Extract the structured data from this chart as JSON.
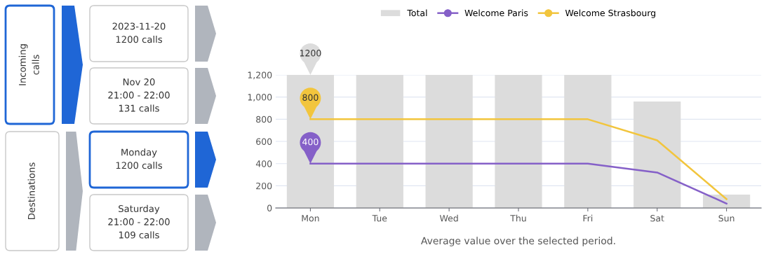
{
  "chart_data": [
    {
      "type": "other",
      "annotations": [
        "Incoming\ncalls",
        "2023-11-20\n1200 calls",
        "Nov 20\n21:00 - 22:00\n131 calls",
        "Destinations",
        "Monday\n1200 calls",
        "Saturday\n21:00 - 22:00\n109 calls"
      ]
    },
    {
      "type": "bar",
      "categories": [
        "Mon",
        "Tue",
        "Wed",
        "Thu",
        "Fri",
        "Sat",
        "Sun"
      ],
      "series": [
        {
          "name": "Total",
          "type": "bar",
          "color": "#dcdcdc",
          "values": [
            1200,
            1200,
            1200,
            1200,
            1200,
            960,
            120
          ]
        },
        {
          "name": "Welcome Paris",
          "type": "line",
          "color": "#8560c8",
          "values": [
            400,
            400,
            400,
            400,
            400,
            320,
            40
          ]
        },
        {
          "name": "Welcome Strasbourg",
          "type": "line",
          "color": "#f2c53d",
          "values": [
            800,
            800,
            800,
            800,
            800,
            610,
            80
          ]
        }
      ],
      "ylim": [
        0,
        1200
      ],
      "yticks": [
        0,
        {
          "value": 200,
          "label": "200"
        },
        {
          "value": 400,
          "label": "400"
        },
        {
          "value": 600,
          "label": "600"
        },
        {
          "value": 800,
          "label": "800"
        },
        {
          "value": 1000,
          "label": "1,000"
        },
        {
          "value": 1200,
          "label": "1,200"
        }
      ],
      "xlabel": "Average value over the selected period.",
      "annotations": [
        {
          "text": "1200",
          "x": "Mon",
          "y": 1200
        },
        {
          "text": "400",
          "x": "Mon",
          "y": 400
        },
        {
          "text": "800",
          "x": "Mon",
          "y": 800
        }
      ],
      "grid": "y",
      "legend": "top",
      "marker": "none",
      "line_style": "solid"
    }
  ]
}
